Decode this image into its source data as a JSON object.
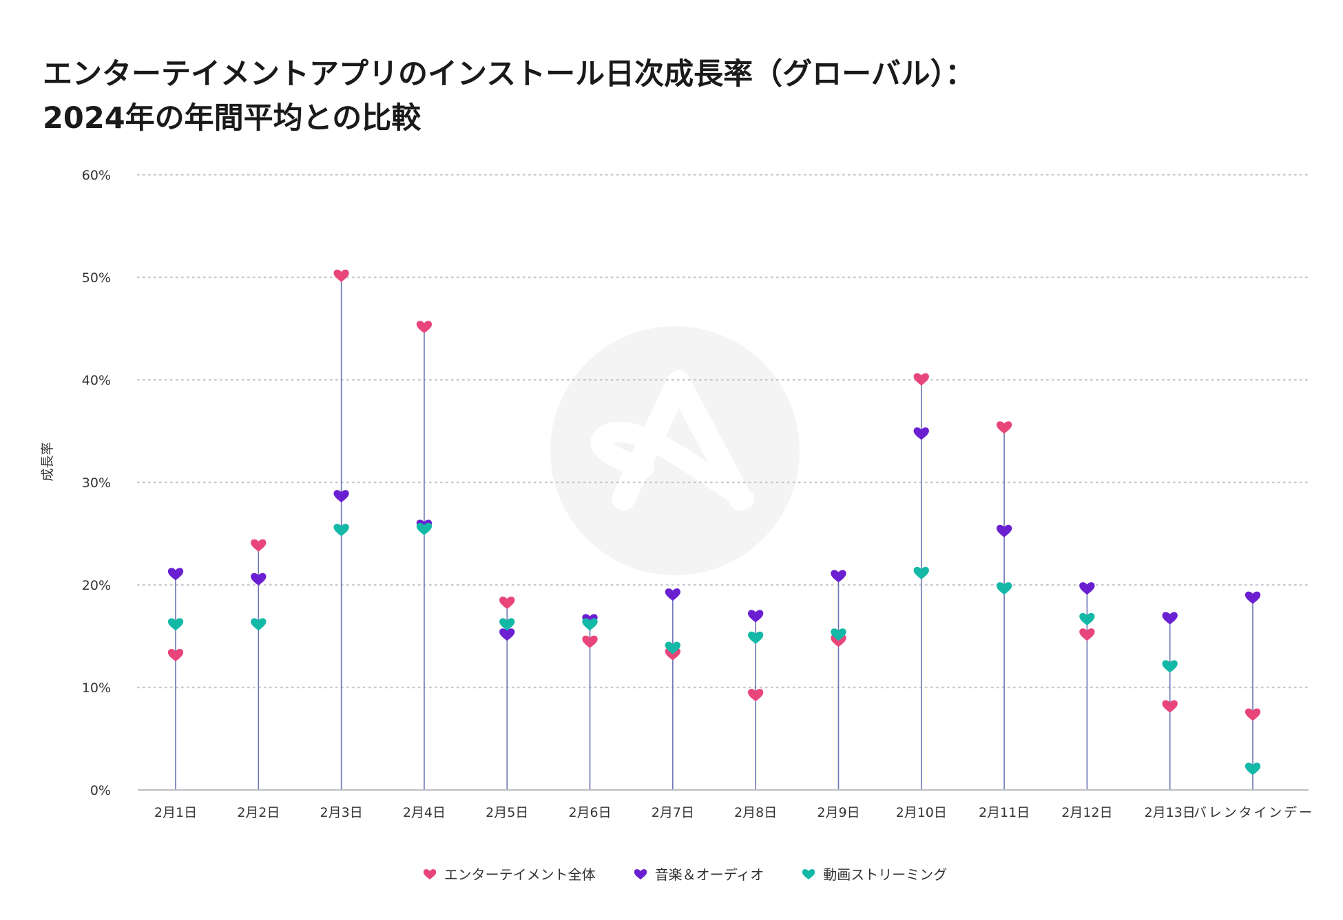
{
  "title_lines": [
    "エンターテイメントアプリのインストール日次成長率（グローバル）：",
    "2024年の年間平均との比較"
  ],
  "chart_data": {
    "type": "dot-range",
    "title": "エンターテイメントアプリのインストール日次成長率（グローバル）：2024年の年間平均との比較",
    "xlabel": "",
    "ylabel": "成長率",
    "ylim": [
      0,
      60
    ],
    "yticks": [
      0,
      10,
      20,
      30,
      40,
      50,
      60
    ],
    "ytick_labels": [
      "0%",
      "10%",
      "20%",
      "30%",
      "40%",
      "50%",
      "60%"
    ],
    "grid": true,
    "legend_position": "bottom-center",
    "categories": [
      "2月1日",
      "2月2日",
      "2月3日",
      "2月4日",
      "2月5日",
      "2月6日",
      "2月7日",
      "2月8日",
      "2月9日",
      "2月10日",
      "2月11日",
      "2月12日",
      "2月13日",
      "バレンタインデー"
    ],
    "series": [
      {
        "name": "エンターテイメント全体",
        "color": "#E8457A",
        "values": [
          13.2,
          23.9,
          50.2,
          45.2,
          18.3,
          14.5,
          13.3,
          9.3,
          14.6,
          40.1,
          35.4,
          15.2,
          8.2,
          7.4
        ]
      },
      {
        "name": "音楽＆オーディオ",
        "color": "#6A1FD1",
        "values": [
          21.1,
          20.6,
          28.7,
          25.8,
          15.2,
          16.6,
          19.1,
          17.0,
          20.9,
          34.8,
          25.3,
          19.7,
          16.8,
          18.8
        ]
      },
      {
        "name": "動画ストリーミング",
        "color": "#14B8A6",
        "values": [
          16.2,
          16.2,
          25.4,
          25.5,
          16.2,
          16.2,
          13.9,
          14.9,
          15.2,
          21.2,
          19.7,
          16.7,
          12.1,
          2.1
        ]
      }
    ],
    "stem_color": "#6B74B5",
    "grid_color": "#C9C9CF"
  }
}
